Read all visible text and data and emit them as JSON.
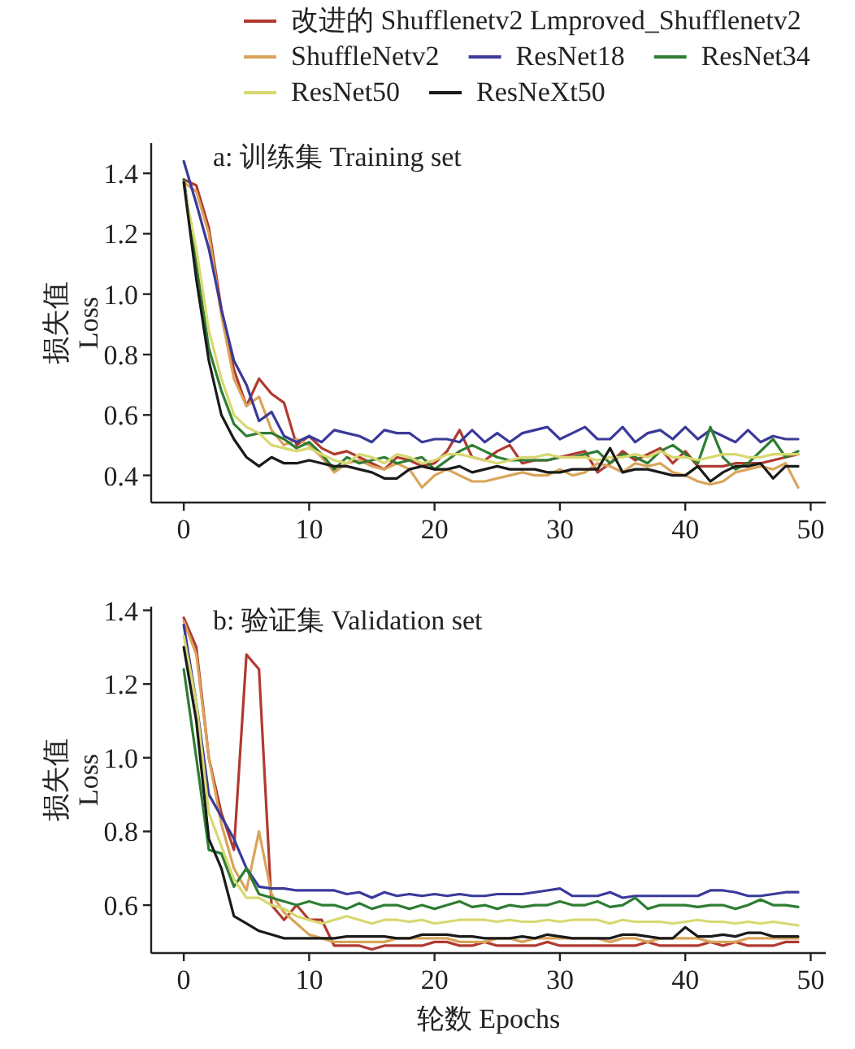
{
  "chart_data": [
    {
      "type": "line",
      "title": "a: 训练集 Training set",
      "ylabel": "损失值 Loss",
      "legend": "top",
      "x": [
        0,
        1,
        2,
        3,
        4,
        5,
        6,
        7,
        8,
        9,
        10,
        11,
        12,
        13,
        14,
        15,
        16,
        17,
        18,
        19,
        20,
        21,
        22,
        23,
        24,
        25,
        26,
        27,
        28,
        29,
        30,
        31,
        32,
        33,
        34,
        35,
        36,
        37,
        38,
        39,
        40,
        41,
        42,
        43,
        44,
        45,
        46,
        47,
        48,
        49
      ],
      "xlim": [
        -2.6,
        51.2
      ],
      "xticks": [
        0,
        10,
        20,
        30,
        40,
        50
      ],
      "ylim": [
        0.31,
        1.5
      ],
      "yticks": [
        0.4,
        0.6,
        0.8,
        {
          "value": 1,
          "label": "1.0"
        },
        1.2,
        1.4
      ],
      "series": [
        {
          "name": "改进的 Shufflenetv2 Lmproved_Shufflenetv2",
          "color": "#b03a30",
          "values": [
            1.38,
            1.36,
            1.22,
            0.95,
            0.75,
            0.63,
            0.72,
            0.67,
            0.64,
            0.5,
            0.53,
            0.49,
            0.47,
            0.48,
            0.46,
            0.44,
            0.42,
            0.46,
            0.45,
            0.43,
            0.44,
            0.48,
            0.55,
            0.46,
            0.45,
            0.48,
            0.5,
            0.44,
            0.45,
            0.45,
            0.46,
            0.47,
            0.48,
            0.41,
            0.44,
            0.48,
            0.45,
            0.47,
            0.49,
            0.44,
            0.48,
            0.43,
            0.43,
            0.43,
            0.44,
            0.44,
            0.44,
            0.45,
            0.46,
            0.47
          ]
        },
        {
          "name": "ShuffleNetv2",
          "color": "#d9a45a",
          "values": [
            1.37,
            1.34,
            1.2,
            0.93,
            0.72,
            0.63,
            0.66,
            0.55,
            0.5,
            0.52,
            0.5,
            0.46,
            0.41,
            0.44,
            0.45,
            0.43,
            0.42,
            0.44,
            0.42,
            0.36,
            0.4,
            0.42,
            0.4,
            0.38,
            0.38,
            0.39,
            0.4,
            0.41,
            0.4,
            0.4,
            0.42,
            0.4,
            0.41,
            0.44,
            0.43,
            0.41,
            0.44,
            0.43,
            0.44,
            0.41,
            0.4,
            0.38,
            0.37,
            0.38,
            0.41,
            0.42,
            0.43,
            0.42,
            0.44,
            0.36
          ]
        },
        {
          "name": "ResNet18",
          "color": "#3a3a9a",
          "values": [
            1.44,
            1.3,
            1.15,
            0.95,
            0.78,
            0.7,
            0.58,
            0.61,
            0.53,
            0.51,
            0.53,
            0.51,
            0.55,
            0.54,
            0.53,
            0.51,
            0.55,
            0.54,
            0.54,
            0.51,
            0.52,
            0.52,
            0.51,
            0.55,
            0.51,
            0.54,
            0.51,
            0.54,
            0.55,
            0.56,
            0.52,
            0.54,
            0.56,
            0.52,
            0.52,
            0.56,
            0.51,
            0.54,
            0.55,
            0.52,
            0.56,
            0.52,
            0.55,
            0.53,
            0.51,
            0.55,
            0.51,
            0.53,
            0.52,
            0.52
          ]
        },
        {
          "name": "ResNet34",
          "color": "#2e7d32",
          "values": [
            1.38,
            1.1,
            0.82,
            0.68,
            0.57,
            0.53,
            0.54,
            0.54,
            0.52,
            0.49,
            0.51,
            0.47,
            0.42,
            0.46,
            0.44,
            0.45,
            0.46,
            0.44,
            0.45,
            0.46,
            0.42,
            0.45,
            0.48,
            0.5,
            0.48,
            0.46,
            0.45,
            0.45,
            0.45,
            0.45,
            0.46,
            0.46,
            0.47,
            0.48,
            0.44,
            0.47,
            0.46,
            0.44,
            0.48,
            0.5,
            0.47,
            0.44,
            0.56,
            0.46,
            0.42,
            0.44,
            0.48,
            0.52,
            0.46,
            0.48
          ]
        },
        {
          "name": "ResNet50",
          "color": "#d8d870",
          "values": [
            1.36,
            1.15,
            0.88,
            0.72,
            0.6,
            0.56,
            0.54,
            0.5,
            0.49,
            0.48,
            0.49,
            0.47,
            0.45,
            0.44,
            0.47,
            0.46,
            0.44,
            0.47,
            0.46,
            0.44,
            0.45,
            0.47,
            0.47,
            0.46,
            0.45,
            0.44,
            0.45,
            0.46,
            0.46,
            0.47,
            0.46,
            0.46,
            0.46,
            0.45,
            0.46,
            0.46,
            0.47,
            0.46,
            0.48,
            0.46,
            0.46,
            0.45,
            0.46,
            0.47,
            0.47,
            0.46,
            0.46,
            0.47,
            0.47,
            0.47
          ]
        },
        {
          "name": "ResNeXt50",
          "color": "#1a1a1a",
          "values": [
            1.37,
            1.05,
            0.78,
            0.6,
            0.52,
            0.46,
            0.43,
            0.46,
            0.44,
            0.44,
            0.45,
            0.44,
            0.43,
            0.43,
            0.42,
            0.41,
            0.39,
            0.39,
            0.42,
            0.43,
            0.42,
            0.42,
            0.43,
            0.41,
            0.42,
            0.43,
            0.42,
            0.42,
            0.42,
            0.41,
            0.41,
            0.42,
            0.42,
            0.42,
            0.49,
            0.41,
            0.42,
            0.42,
            0.41,
            0.4,
            0.4,
            0.43,
            0.38,
            0.41,
            0.43,
            0.43,
            0.44,
            0.39,
            0.43,
            0.43
          ]
        }
      ]
    },
    {
      "type": "line",
      "title": "b: 验证集 Validation set",
      "xlabel": "轮数 Epochs",
      "ylabel": "损失值 Loss",
      "x": [
        0,
        1,
        2,
        3,
        4,
        5,
        6,
        7,
        8,
        9,
        10,
        11,
        12,
        13,
        14,
        15,
        16,
        17,
        18,
        19,
        20,
        21,
        22,
        23,
        24,
        25,
        26,
        27,
        28,
        29,
        30,
        31,
        32,
        33,
        34,
        35,
        36,
        37,
        38,
        39,
        40,
        41,
        42,
        43,
        44,
        45,
        46,
        47,
        48,
        49
      ],
      "xlim": [
        -2.6,
        51.2
      ],
      "xticks": [
        0,
        10,
        20,
        30,
        40,
        50
      ],
      "ylim": [
        0.47,
        1.41
      ],
      "yticks": [
        0.6,
        0.8,
        {
          "value": 1,
          "label": "1.0"
        },
        1.2,
        1.4
      ],
      "series": [
        {
          "color": "#b03a30",
          "values": [
            1.38,
            1.3,
            1.0,
            0.85,
            0.75,
            1.28,
            1.24,
            0.6,
            0.56,
            0.6,
            0.56,
            0.56,
            0.49,
            0.49,
            0.49,
            0.48,
            0.49,
            0.49,
            0.49,
            0.49,
            0.5,
            0.5,
            0.49,
            0.49,
            0.5,
            0.49,
            0.49,
            0.49,
            0.49,
            0.5,
            0.49,
            0.49,
            0.49,
            0.49,
            0.49,
            0.49,
            0.49,
            0.5,
            0.49,
            0.49,
            0.49,
            0.49,
            0.5,
            0.49,
            0.5,
            0.49,
            0.49,
            0.49,
            0.5,
            0.5
          ]
        },
        {
          "color": "#d9a45a",
          "values": [
            1.37,
            1.28,
            1.0,
            0.82,
            0.7,
            0.64,
            0.8,
            0.63,
            0.58,
            0.55,
            0.52,
            0.51,
            0.5,
            0.5,
            0.5,
            0.5,
            0.5,
            0.51,
            0.51,
            0.51,
            0.51,
            0.51,
            0.5,
            0.5,
            0.5,
            0.51,
            0.51,
            0.5,
            0.51,
            0.51,
            0.51,
            0.51,
            0.51,
            0.51,
            0.5,
            0.51,
            0.51,
            0.5,
            0.51,
            0.51,
            0.51,
            0.51,
            0.5,
            0.5,
            0.5,
            0.51,
            0.51,
            0.51,
            0.51,
            0.51
          ]
        },
        {
          "color": "#3a3a9a",
          "values": [
            1.36,
            1.15,
            0.9,
            0.84,
            0.78,
            0.7,
            0.65,
            0.645,
            0.645,
            0.64,
            0.64,
            0.64,
            0.64,
            0.63,
            0.635,
            0.62,
            0.635,
            0.625,
            0.63,
            0.625,
            0.63,
            0.625,
            0.63,
            0.625,
            0.625,
            0.63,
            0.63,
            0.63,
            0.635,
            0.64,
            0.645,
            0.625,
            0.625,
            0.625,
            0.635,
            0.62,
            0.625,
            0.625,
            0.625,
            0.625,
            0.625,
            0.625,
            0.64,
            0.64,
            0.635,
            0.625,
            0.625,
            0.63,
            0.635,
            0.635
          ]
        },
        {
          "color": "#2e7d32",
          "values": [
            1.24,
            1.0,
            0.75,
            0.74,
            0.65,
            0.7,
            0.63,
            0.62,
            0.61,
            0.6,
            0.61,
            0.6,
            0.6,
            0.59,
            0.605,
            0.59,
            0.6,
            0.6,
            0.59,
            0.6,
            0.59,
            0.6,
            0.61,
            0.595,
            0.6,
            0.59,
            0.6,
            0.595,
            0.6,
            0.6,
            0.61,
            0.6,
            0.6,
            0.61,
            0.595,
            0.6,
            0.62,
            0.59,
            0.6,
            0.6,
            0.6,
            0.595,
            0.6,
            0.6,
            0.59,
            0.6,
            0.615,
            0.6,
            0.6,
            0.595
          ]
        },
        {
          "color": "#d8d870",
          "values": [
            1.33,
            1.15,
            0.85,
            0.76,
            0.67,
            0.62,
            0.62,
            0.6,
            0.59,
            0.57,
            0.56,
            0.55,
            0.56,
            0.57,
            0.56,
            0.55,
            0.56,
            0.56,
            0.555,
            0.56,
            0.55,
            0.555,
            0.56,
            0.56,
            0.56,
            0.555,
            0.56,
            0.555,
            0.555,
            0.56,
            0.555,
            0.56,
            0.56,
            0.56,
            0.55,
            0.56,
            0.555,
            0.555,
            0.555,
            0.55,
            0.555,
            0.56,
            0.555,
            0.555,
            0.55,
            0.555,
            0.55,
            0.555,
            0.55,
            0.545
          ]
        },
        {
          "color": "#1a1a1a",
          "values": [
            1.3,
            1.1,
            0.78,
            0.7,
            0.57,
            0.55,
            0.53,
            0.52,
            0.51,
            0.51,
            0.51,
            0.51,
            0.51,
            0.515,
            0.515,
            0.515,
            0.515,
            0.51,
            0.51,
            0.52,
            0.52,
            0.52,
            0.515,
            0.515,
            0.51,
            0.51,
            0.51,
            0.515,
            0.51,
            0.52,
            0.515,
            0.51,
            0.51,
            0.51,
            0.51,
            0.52,
            0.52,
            0.515,
            0.51,
            0.51,
            0.54,
            0.515,
            0.515,
            0.52,
            0.515,
            0.525,
            0.525,
            0.515,
            0.515,
            0.515
          ]
        }
      ]
    }
  ]
}
